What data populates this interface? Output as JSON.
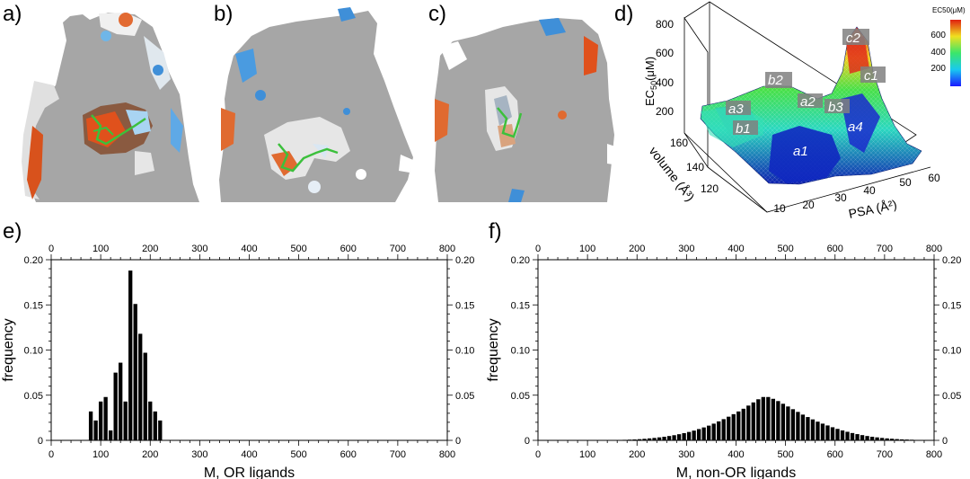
{
  "panel_labels": {
    "a": "a)",
    "b": "b)",
    "c": "c)",
    "d": "d)",
    "e": "e)",
    "f": "f)"
  },
  "panel_d": {
    "zlabel": "EC50(μM)",
    "zlabel_main": "EC",
    "zlabel_sub": "50",
    "zlabel_unit": "(μM)",
    "z_ticks": [
      "200",
      "400",
      "600",
      "800"
    ],
    "volume_label": "volume (Å³)",
    "volume_ticks": [
      "120",
      "140",
      "160"
    ],
    "psa_label": "PSA (Å²)",
    "psa_ticks": [
      "10",
      "20",
      "30",
      "40",
      "50",
      "60"
    ],
    "colorbar_title": "EC50(μM)",
    "colorbar_ticks": [
      "200",
      "400",
      "600"
    ],
    "region_labels": [
      "a1",
      "a2",
      "a3",
      "a4",
      "b1",
      "b2",
      "b3",
      "c1",
      "c2"
    ],
    "colors": {
      "low": "#0b1eb5",
      "mid": "#37e5b0",
      "high": "#e0301e"
    }
  },
  "chart_data": [
    {
      "type": "bar",
      "panel": "e",
      "title": "",
      "xlabel": "M, OR ligands",
      "ylabel": "frequency",
      "xlim": [
        0,
        800
      ],
      "ylim": [
        0,
        0.2
      ],
      "x_ticks": [
        0,
        100,
        200,
        300,
        400,
        500,
        600,
        700,
        800
      ],
      "y_ticks": [
        0,
        0.05,
        0.1,
        0.15,
        0.2
      ],
      "y_tick_labels": [
        "0",
        "0.05",
        "0.10",
        "0.15",
        "0.20"
      ],
      "bin_width": 10,
      "bin_starts": [
        75,
        85,
        95,
        105,
        115,
        125,
        135,
        145,
        155,
        165,
        175,
        185,
        195,
        205,
        215
      ],
      "values": [
        0.032,
        0.022,
        0.043,
        0.048,
        0.011,
        0.075,
        0.086,
        0.043,
        0.188,
        0.151,
        0.118,
        0.097,
        0.043,
        0.032,
        0.022
      ],
      "bar_color": "#000000"
    },
    {
      "type": "bar",
      "panel": "f",
      "title": "",
      "xlabel": "M, non-OR ligands",
      "ylabel": "frequency",
      "xlim": [
        0,
        800
      ],
      "ylim": [
        0,
        0.2
      ],
      "x_ticks": [
        0,
        100,
        200,
        300,
        400,
        500,
        600,
        700,
        800
      ],
      "y_ticks": [
        0,
        0.05,
        0.1,
        0.15,
        0.2
      ],
      "y_tick_labels": [
        "0",
        "0.05",
        "0.10",
        "0.15",
        "0.20"
      ],
      "bin_width": 10,
      "bin_starts": [
        160,
        170,
        180,
        190,
        200,
        210,
        220,
        230,
        240,
        250,
        260,
        270,
        280,
        290,
        300,
        310,
        320,
        330,
        340,
        350,
        360,
        370,
        380,
        390,
        400,
        410,
        420,
        430,
        440,
        450,
        460,
        470,
        480,
        490,
        500,
        510,
        520,
        530,
        540,
        550,
        560,
        570,
        580,
        590,
        600,
        610,
        620,
        630,
        640,
        650,
        660,
        670,
        680,
        690,
        700,
        710,
        720,
        730,
        740,
        750,
        760,
        770,
        780,
        790
      ],
      "values": [
        0.0005,
        0.0006,
        0.0008,
        0.001,
        0.0013,
        0.0017,
        0.0022,
        0.0027,
        0.0033,
        0.004,
        0.0048,
        0.0057,
        0.0068,
        0.008,
        0.0093,
        0.0108,
        0.0125,
        0.0143,
        0.0163,
        0.0185,
        0.021,
        0.0235,
        0.0262,
        0.029,
        0.032,
        0.035,
        0.0385,
        0.042,
        0.0455,
        0.048,
        0.048,
        0.046,
        0.0435,
        0.0405,
        0.0375,
        0.0345,
        0.0315,
        0.0285,
        0.0258,
        0.0232,
        0.0207,
        0.0185,
        0.0165,
        0.0145,
        0.0127,
        0.011,
        0.0095,
        0.0081,
        0.0069,
        0.0058,
        0.0048,
        0.004,
        0.0033,
        0.0027,
        0.0022,
        0.0018,
        0.0014,
        0.0011,
        0.0009,
        0.0007,
        0.0005,
        0.0004,
        0.0003,
        0.0002
      ],
      "bar_color": "#000000"
    }
  ]
}
